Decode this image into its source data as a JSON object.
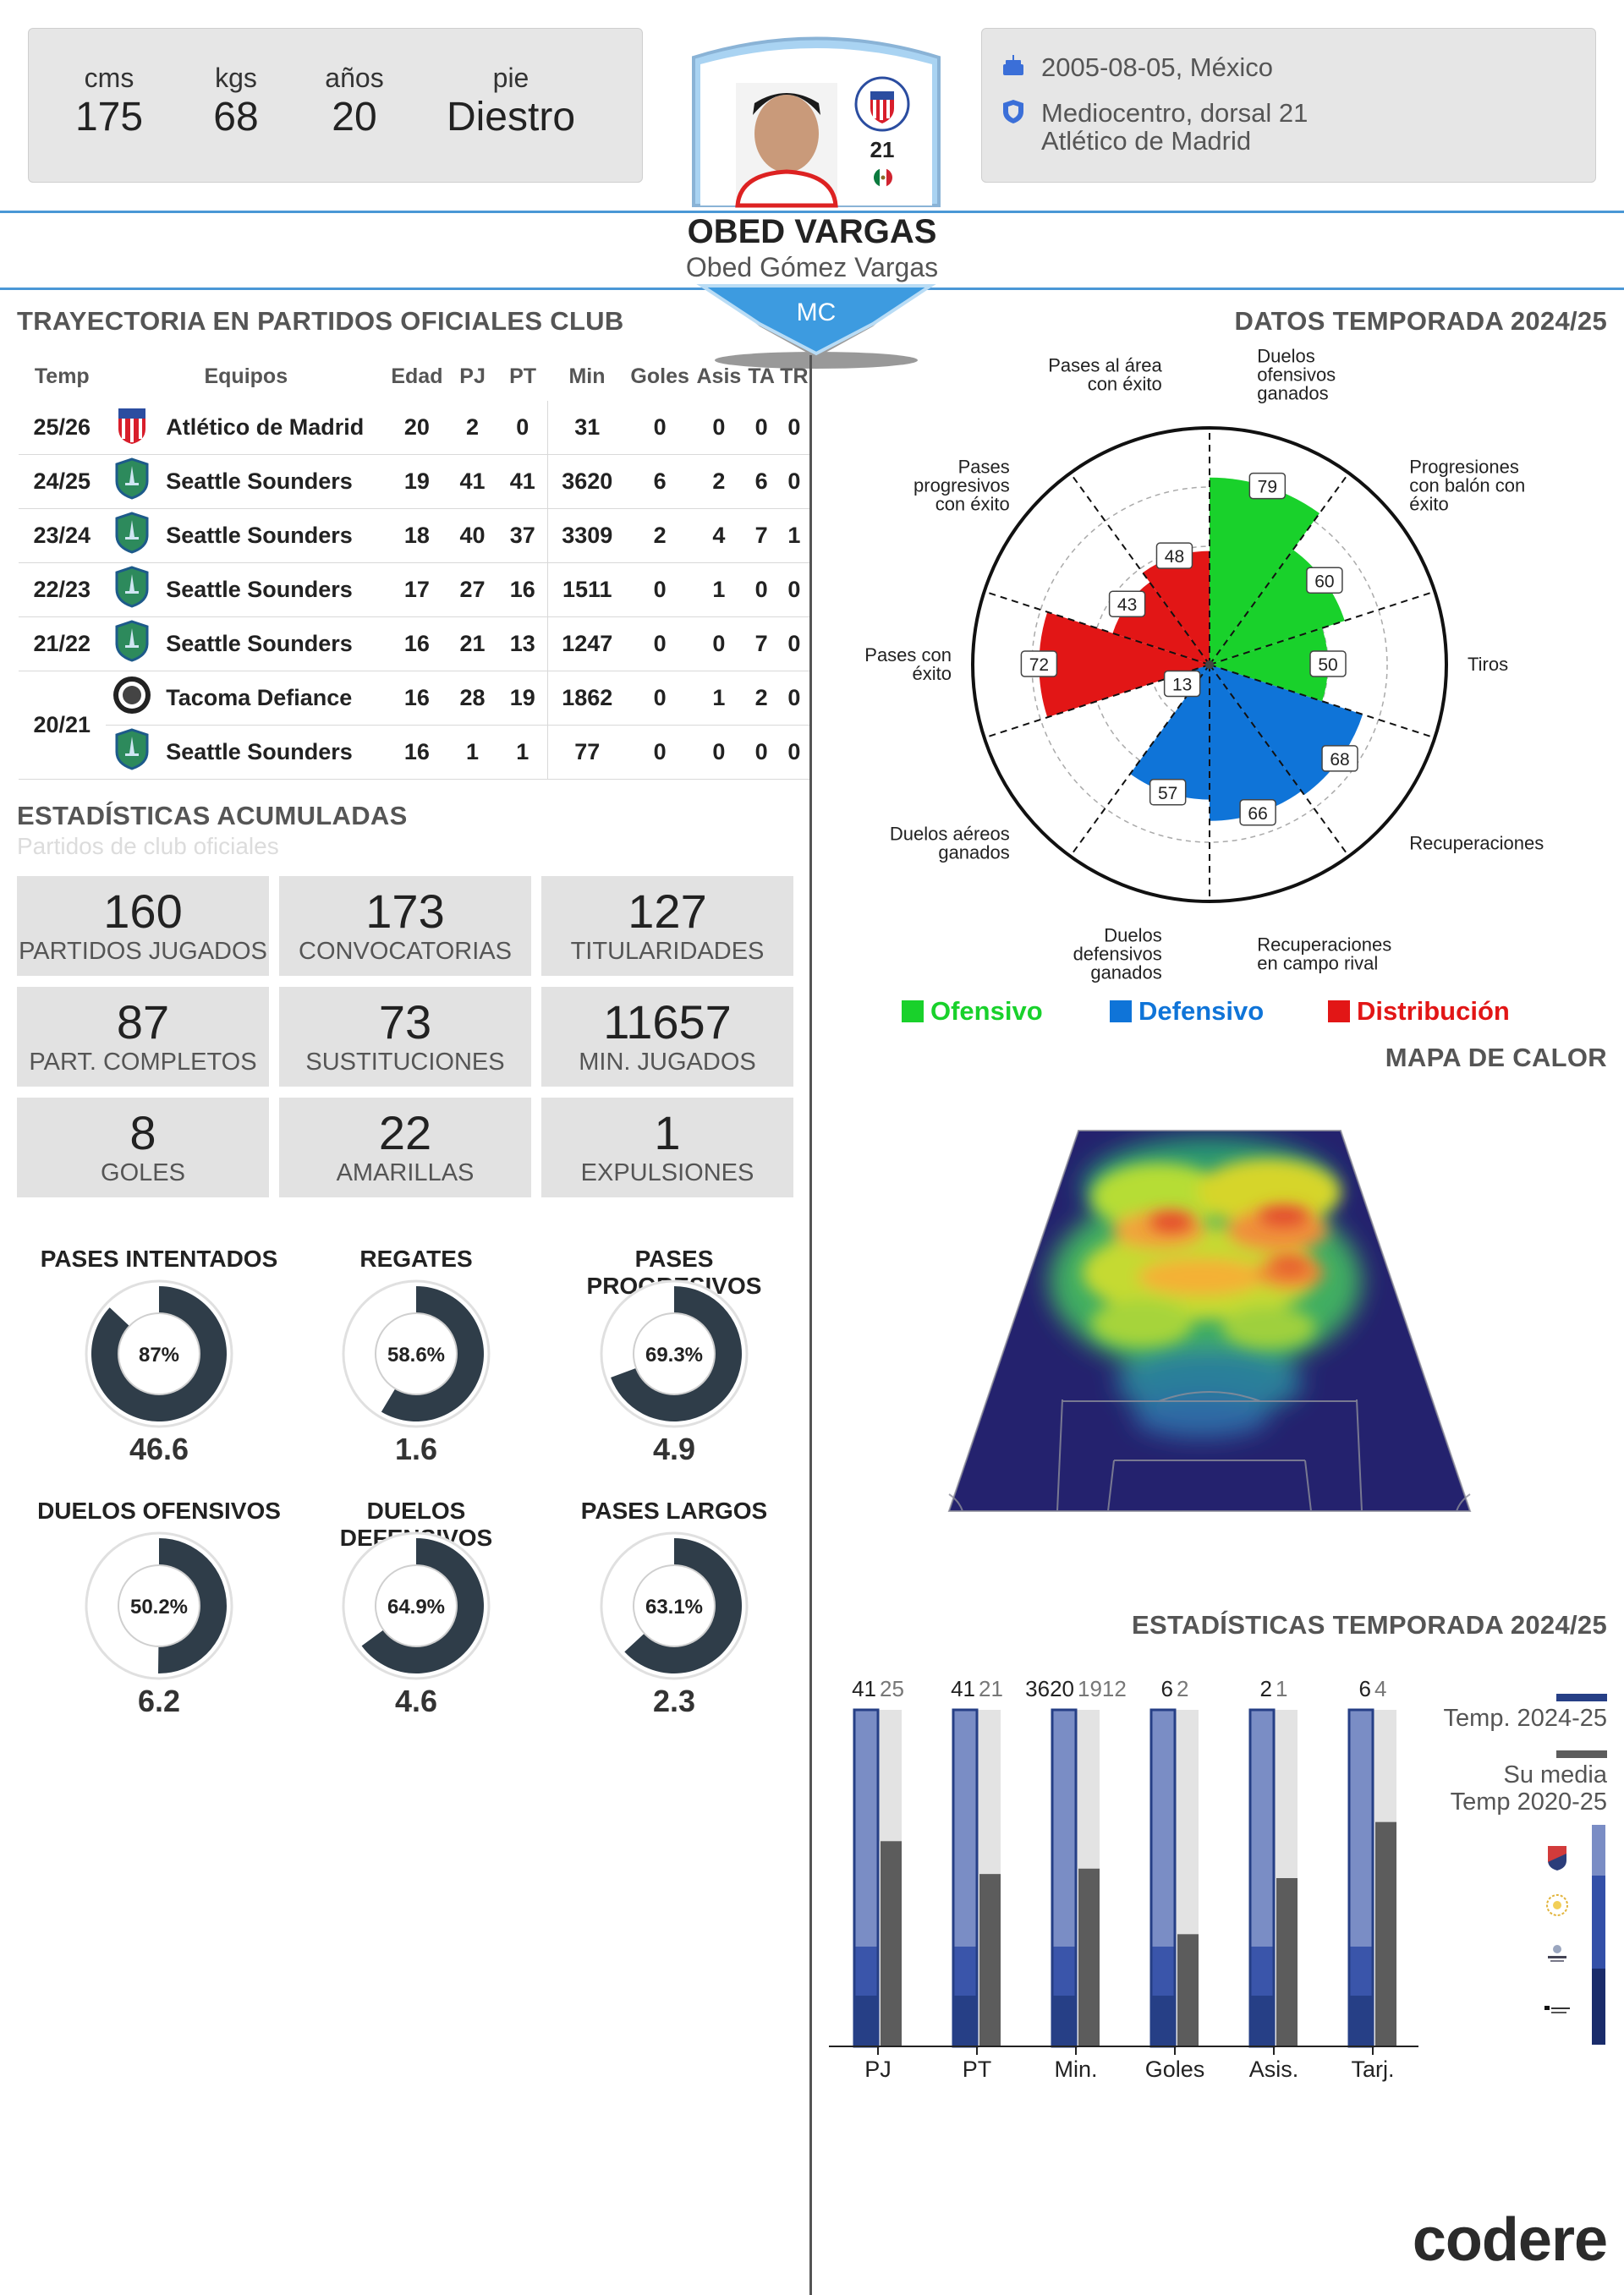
{
  "physical": {
    "height_label": "cms",
    "height": "175",
    "weight_label": "kgs",
    "weight": "68",
    "age_label": "años",
    "age": "20",
    "foot_label": "pie",
    "foot": "Diestro"
  },
  "card": {
    "number": "21",
    "position": "MC"
  },
  "info": {
    "birth": "2005-08-05, México",
    "role_line1": "Mediocentro, dorsal 21",
    "role_line2": "Atlético de Madrid"
  },
  "player": {
    "name": "OBED VARGAS",
    "full_name": "Obed Gómez Vargas"
  },
  "trajectory": {
    "title": "TRAYECTORIA EN PARTIDOS OFICIALES CLUB",
    "headers": [
      "Temp",
      "Equipos",
      "Edad",
      "PJ",
      "PT",
      "Min",
      "Goles",
      "Asis",
      "TA",
      "TR"
    ],
    "rows": [
      {
        "temp": "25/26",
        "team": "Atlético de Madrid",
        "edad": "20",
        "pj": "2",
        "pt": "0",
        "min": "31",
        "goles": "0",
        "asis": "0",
        "ta": "0",
        "tr": "0"
      },
      {
        "temp": "24/25",
        "team": "Seattle Sounders",
        "edad": "19",
        "pj": "41",
        "pt": "41",
        "min": "3620",
        "goles": "6",
        "asis": "2",
        "ta": "6",
        "tr": "0"
      },
      {
        "temp": "23/24",
        "team": "Seattle Sounders",
        "edad": "18",
        "pj": "40",
        "pt": "37",
        "min": "3309",
        "goles": "2",
        "asis": "4",
        "ta": "7",
        "tr": "1"
      },
      {
        "temp": "22/23",
        "team": "Seattle Sounders",
        "edad": "17",
        "pj": "27",
        "pt": "16",
        "min": "1511",
        "goles": "0",
        "asis": "1",
        "ta": "0",
        "tr": "0"
      },
      {
        "temp": "21/22",
        "team": "Seattle Sounders",
        "edad": "16",
        "pj": "21",
        "pt": "13",
        "min": "1247",
        "goles": "0",
        "asis": "0",
        "ta": "7",
        "tr": "0"
      },
      {
        "temp": "20/21",
        "team": "Tacoma Defiance",
        "edad": "16",
        "pj": "28",
        "pt": "19",
        "min": "1862",
        "goles": "0",
        "asis": "1",
        "ta": "2",
        "tr": "0"
      },
      {
        "temp": "",
        "team": "Seattle Sounders",
        "edad": "16",
        "pj": "1",
        "pt": "1",
        "min": "77",
        "goles": "0",
        "asis": "0",
        "ta": "0",
        "tr": "0"
      }
    ]
  },
  "accumulated": {
    "title": "ESTADÍSTICAS ACUMULADAS",
    "subtitle": "Partidos de club oficiales",
    "items": [
      {
        "value": "160",
        "label": "PARTIDOS JUGADOS"
      },
      {
        "value": "173",
        "label": "CONVOCATORIAS"
      },
      {
        "value": "127",
        "label": "TITULARIDADES"
      },
      {
        "value": "87",
        "label": "PART. COMPLETOS"
      },
      {
        "value": "73",
        "label": "SUSTITUCIONES"
      },
      {
        "value": "11657",
        "label": "MIN. JUGADOS"
      },
      {
        "value": "8",
        "label": "GOLES"
      },
      {
        "value": "22",
        "label": "AMARILLAS"
      },
      {
        "value": "1",
        "label": "EXPULSIONES"
      }
    ]
  },
  "donuts": [
    {
      "title": "PASES INTENTADOS",
      "pct": "87%",
      "fraction": 0.87,
      "value": "46.6"
    },
    {
      "title": "REGATES",
      "pct": "58.6%",
      "fraction": 0.586,
      "value": "1.6"
    },
    {
      "title": "PASES PROGRESIVOS",
      "pct": "69.3%",
      "fraction": 0.693,
      "value": "4.9"
    },
    {
      "title": "DUELOS OFENSIVOS",
      "pct": "50.2%",
      "fraction": 0.502,
      "value": "6.2"
    },
    {
      "title": "DUELOS DEFENSIVOS",
      "pct": "64.9%",
      "fraction": 0.649,
      "value": "4.6"
    },
    {
      "title": "PASES LARGOS",
      "pct": "63.1%",
      "fraction": 0.631,
      "value": "2.3"
    }
  ],
  "season": {
    "title": "DATOS TEMPORADA 2024/25",
    "categories": [
      {
        "label": [
          "Duelos",
          "ofensivos",
          "ganados"
        ],
        "value": 79,
        "group": "off"
      },
      {
        "label": [
          "Progresiones",
          "con balón con",
          "éxito"
        ],
        "value": 60,
        "group": "off"
      },
      {
        "label": [
          "Tiros"
        ],
        "value": 50,
        "group": "off"
      },
      {
        "label": [
          "Recuperaciones"
        ],
        "value": 68,
        "group": "def"
      },
      {
        "label": [
          "Recuperaciones",
          "en campo rival"
        ],
        "value": 66,
        "group": "def"
      },
      {
        "label": [
          "Duelos",
          "defensivos",
          "ganados"
        ],
        "value": 57,
        "group": "def"
      },
      {
        "label": [
          "Duelos aéreos",
          "ganados"
        ],
        "value": 13,
        "group": "def"
      },
      {
        "label": [
          "Pases con",
          "éxito"
        ],
        "value": 72,
        "group": "dist"
      },
      {
        "label": [
          "Pases",
          "progresivos",
          "con éxito"
        ],
        "value": 43,
        "group": "dist"
      },
      {
        "label": [
          "Pases al área",
          "con éxito"
        ],
        "value": 48,
        "group": "dist"
      }
    ],
    "colors": {
      "off": "#19d12b",
      "def": "#0f74d8",
      "dist": "#e21616"
    },
    "legend": [
      {
        "label": "Ofensivo",
        "color": "#19d12b"
      },
      {
        "label": "Defensivo",
        "color": "#0f74d8"
      },
      {
        "label": "Distribución",
        "color": "#e21616"
      }
    ]
  },
  "heatmap": {
    "title": "MAPA DE CALOR"
  },
  "bar_stats": {
    "title": "ESTADÍSTICAS TEMPORADA 2024/25",
    "legend_current": "Temp. 2024-25",
    "legend_avg_line1": "Su media",
    "legend_avg_line2": "Temp 2020-25",
    "colors": {
      "current": "#263f86",
      "current_light": "#7a8dc5",
      "avg": "#5c5c5c",
      "avg_bg": "#e3e3e3"
    }
  },
  "chart_data": {
    "type": "bar",
    "categories": [
      "PJ",
      "PT",
      "Min.",
      "Goles",
      "Asis.",
      "Tarj."
    ],
    "series": [
      {
        "name": "Temp. 2024-25",
        "values": [
          41,
          41,
          3620,
          6,
          2,
          6
        ],
        "labels": [
          "41",
          "41",
          "3620",
          "6",
          "2",
          "6"
        ]
      },
      {
        "name": "Su media Temp 2020-25",
        "values": [
          25,
          21,
          1912,
          2,
          1,
          4
        ],
        "labels": [
          "25",
          "21",
          "1912",
          "2",
          "1",
          "4"
        ]
      }
    ]
  },
  "brand": {
    "logo": "codere"
  }
}
